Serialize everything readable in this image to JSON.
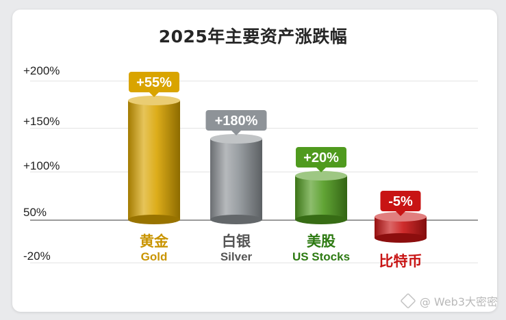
{
  "chart_data": {
    "type": "bar",
    "title": "2025年主要资产涨跌幅",
    "y_tick_labels": [
      "+200%",
      "+150%",
      "+100%",
      "50%",
      "-20%"
    ],
    "categories": [
      {
        "zh": "黄金",
        "en": "Gold"
      },
      {
        "zh": "白银",
        "en": "Silver"
      },
      {
        "zh": "美股",
        "en": "US Stocks"
      },
      {
        "zh": "比特币",
        "en": ""
      }
    ],
    "data_labels": [
      "+55%",
      "+180%",
      "+20%",
      "-5%"
    ],
    "values": [
      55,
      180,
      20,
      -5
    ],
    "colors": [
      "#d9a400",
      "#8e9398",
      "#4f9a1e",
      "#c81414"
    ],
    "label_colors": [
      "#c99400",
      "#555555",
      "#2d7a12",
      "#c81414"
    ],
    "grid": true
  },
  "watermark": "@ Web3大密密"
}
